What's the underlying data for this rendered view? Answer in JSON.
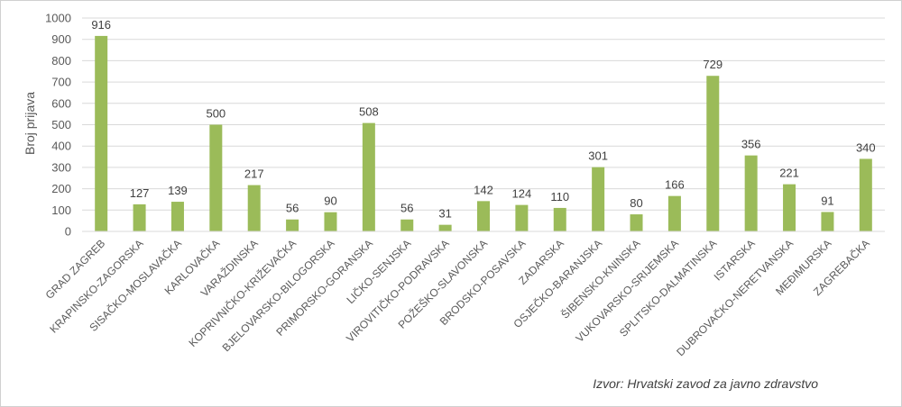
{
  "chart_data": {
    "type": "bar",
    "ylabel": "Broj prijava",
    "xlabel": "",
    "ylim": [
      0,
      1000
    ],
    "yticks": [
      0,
      100,
      200,
      300,
      400,
      500,
      600,
      700,
      800,
      900,
      1000
    ],
    "grid": true,
    "bar_color": "#9BBB59",
    "categories": [
      "GRAD ZAGREB",
      "KRAPINSKO-ZAGORSKA",
      "SISAČKO-MOSLAVAČKA",
      "KARLOVAČKA",
      "VARAŽDINSKA",
      "KOPRIVNIČKO-KRIŽEVAČKA",
      "BJELOVARSKO-BILOGORSKA",
      "PRIMORSKO-GORANSKA",
      "LIČKO-SENJSKA",
      "VIROVITIČKO-PODRAVSKA",
      "POŽEŠKO-SLAVONSKA",
      "BRODSKO-POSAVSKA",
      "ZADARSKA",
      "OSJEČKO-BARANJSKA",
      "ŠIBENSKO-KNINSKA",
      "VUKOVARSKO-SRIJEMSKA",
      "SPLITSKO-DALMATINSKA",
      "ISTARSKA",
      "DUBROVAČKO-NERETVANSKA",
      "MEĐIMURSKA",
      "ZAGREBAČKA"
    ],
    "values": [
      916,
      127,
      139,
      500,
      217,
      56,
      90,
      508,
      56,
      31,
      142,
      124,
      110,
      301,
      80,
      166,
      729,
      356,
      221,
      91,
      340
    ],
    "source": "Izvor: Hrvatski zavod za javno zdravstvo"
  }
}
